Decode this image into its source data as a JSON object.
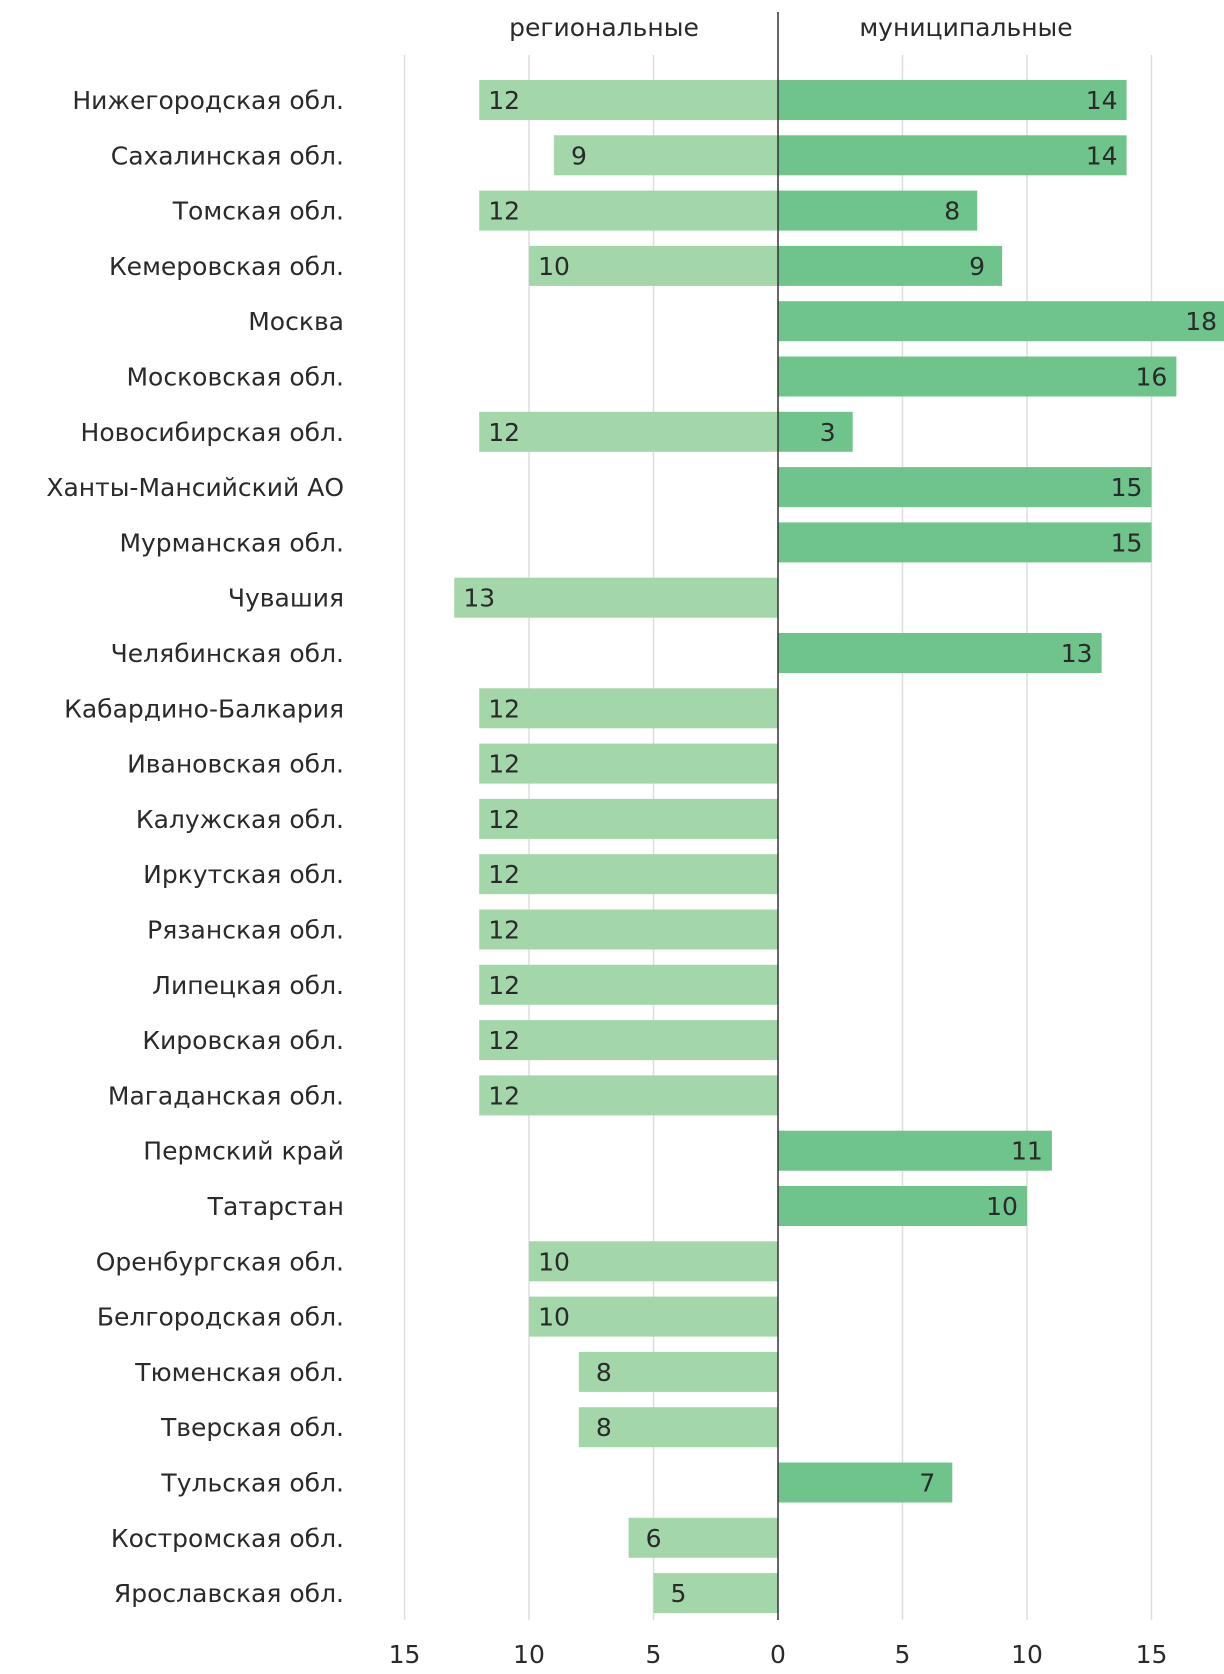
{
  "chart_data": {
    "type": "bar",
    "orientation": "horizontal-diverging",
    "series": [
      {
        "name": "региональные",
        "values": [
          12,
          9,
          12,
          10,
          null,
          null,
          12,
          null,
          null,
          13,
          null,
          12,
          12,
          12,
          12,
          12,
          12,
          12,
          12,
          null,
          null,
          10,
          10,
          8,
          8,
          null,
          6,
          5
        ],
        "color": "#a3d6a9"
      },
      {
        "name": "муниципальные",
        "values": [
          14,
          14,
          8,
          9,
          18,
          16,
          3,
          15,
          15,
          null,
          13,
          null,
          null,
          null,
          null,
          null,
          null,
          null,
          null,
          11,
          10,
          null,
          null,
          null,
          null,
          7,
          null,
          null
        ],
        "color": "#6ec48b"
      }
    ],
    "categories": [
      "Нижегородская обл.",
      "Сахалинская обл.",
      "Томская обл.",
      "Кемеровская обл.",
      "Москва",
      "Московская обл.",
      "Новосибирская обл.",
      "Ханты-Мансийский АО",
      "Мурманская обл.",
      "Чувашия",
      "Челябинская обл.",
      "Кабардино-Балкария",
      "Ивановская обл.",
      "Калужская обл.",
      "Иркутская обл.",
      "Рязанская обл.",
      "Липецкая обл.",
      "Кировская обл.",
      "Магаданская обл.",
      "Пермский край",
      "Татарстан",
      "Оренбургская обл.",
      "Белгородская обл.",
      "Тюменская обл.",
      "Тверская обл.",
      "Тульская обл.",
      "Костромская обл.",
      "Ярославская обл."
    ],
    "x_left_range": [
      0,
      15
    ],
    "x_right_range": [
      0,
      18
    ],
    "x_ticks": [
      15,
      10,
      5,
      0,
      5,
      10,
      15
    ],
    "x_tick_values": [
      -15,
      -10,
      -5,
      0,
      5,
      10,
      15
    ],
    "grid": true,
    "grid_color": "#dddddd",
    "axis_color": "#333333"
  }
}
